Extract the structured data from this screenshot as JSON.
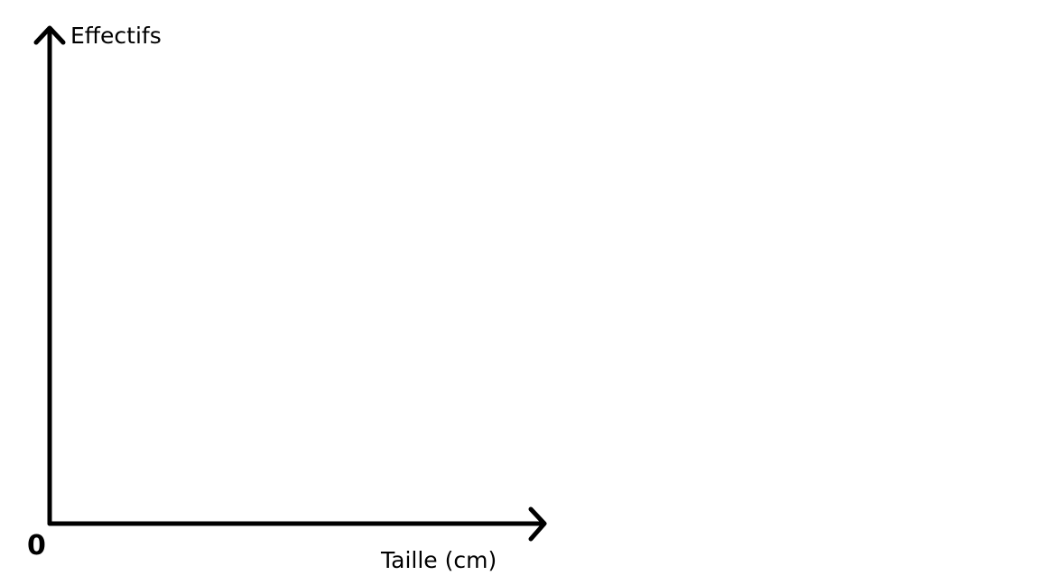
{
  "chart_data": {
    "type": "line",
    "title": "",
    "xlabel": "Taille (cm)",
    "ylabel": "Effectifs",
    "origin_label": "0",
    "series": [],
    "grid": false
  }
}
